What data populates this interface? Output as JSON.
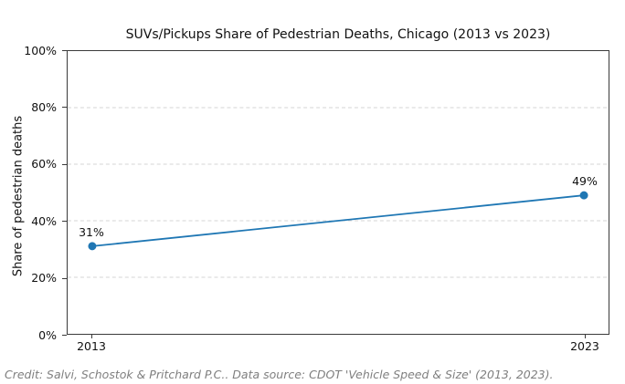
{
  "chart_data": {
    "type": "line",
    "title": "SUVs/Pickups Share of Pedestrian Deaths, Chicago (2013 vs 2023)",
    "xlabel": "",
    "ylabel": "Share of pedestrian deaths",
    "categories": [
      "2013",
      "2023"
    ],
    "series": [
      {
        "name": "SUVs/Pickups share of pedestrian deaths",
        "values": [
          31,
          49
        ]
      }
    ],
    "point_labels": [
      "31%",
      "49%"
    ],
    "ylim": [
      0,
      100
    ],
    "yticks": [
      0,
      20,
      40,
      60,
      80,
      100
    ],
    "ytick_labels": [
      "0%",
      "20%",
      "40%",
      "60%",
      "80%",
      "100%"
    ],
    "grid": {
      "horizontal": true,
      "style": "dashed",
      "color": "#d5d5d5"
    },
    "legend": {
      "visible": false
    },
    "line_color": "#1f77b4",
    "marker": "circle"
  },
  "footer": {
    "credit": "Credit: Salvi, Schostok & Pritchard P.C.. Data source: CDOT 'Vehicle Speed & Size' (2013, 2023)."
  },
  "colors": {
    "accent": "#1f77b4",
    "text": "#111111",
    "muted": "#7f7f7f",
    "spine": "#3a3a3a",
    "background": "#ffffff"
  }
}
